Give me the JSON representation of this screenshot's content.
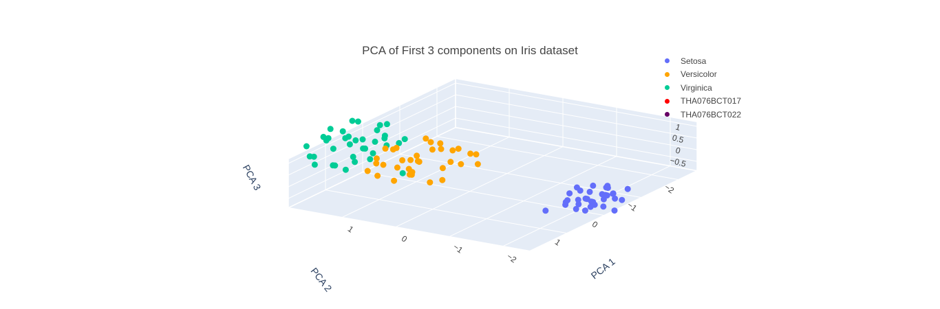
{
  "chart_data": {
    "type": "scatter3d",
    "title": "PCA of First 3 components on Iris dataset",
    "axes": {
      "x": {
        "label": "PCA 1",
        "range": [
          -2.5,
          2
        ],
        "ticks": [
          -2,
          -1,
          0,
          1
        ]
      },
      "y": {
        "label": "PCA 2",
        "range": [
          -2.5,
          2
        ],
        "ticks": [
          -2,
          -1,
          0,
          1
        ]
      },
      "z": {
        "label": "PCA 3",
        "range": [
          -0.9,
          1.2
        ],
        "tick_labels": [
          "1",
          "0.5",
          "0",
          "−0.5"
        ]
      }
    },
    "background": "#e5ecf6",
    "grid": true,
    "legend_position": "top-right",
    "series": [
      {
        "name": "Setosa",
        "color": "#636efa",
        "points": [
          [
            -2.7,
            0.3,
            0.1
          ],
          [
            -2.5,
            0.5,
            0.2
          ],
          [
            -2.9,
            0.1,
            0.0
          ],
          [
            -2.6,
            0.4,
            -0.1
          ],
          [
            -2.8,
            0.2,
            0.3
          ],
          [
            -2.3,
            0.7,
            0.2
          ],
          [
            -2.4,
            0.2,
            -0.2
          ],
          [
            -2.9,
            0.6,
            0.1
          ],
          [
            -2.5,
            -0.1,
            0.2
          ],
          [
            -2.7,
            0.8,
            0.0
          ],
          [
            -2.2,
            0.3,
            0.4
          ],
          [
            -2.6,
            0.9,
            0.1
          ],
          [
            -2.8,
            -0.2,
            0.2
          ],
          [
            -2.4,
            0.5,
            0.5
          ],
          [
            -2.9,
            0.3,
            -0.3
          ],
          [
            -2.3,
            0.1,
            0.1
          ],
          [
            -2.6,
            0.6,
            0.3
          ],
          [
            -2.7,
            0.0,
            -0.1
          ],
          [
            -2.5,
            0.3,
            0.6
          ],
          [
            -2.2,
            0.6,
            0.0
          ],
          [
            -2.8,
            0.4,
            0.4
          ],
          [
            -2.4,
            0.9,
            0.2
          ],
          [
            -2.6,
            -0.1,
            0.0
          ],
          [
            -2.9,
            0.5,
            0.5
          ],
          [
            -2.3,
            0.4,
            -0.2
          ],
          [
            -2.5,
            0.7,
            0.3
          ],
          [
            -2.7,
            0.2,
            0.6
          ],
          [
            -2.4,
            -0.2,
            0.1
          ],
          [
            -2.8,
            0.8,
            0.2
          ],
          [
            -2.6,
            0.2,
            0.2
          ],
          [
            -2.2,
            0.5,
            0.3
          ],
          [
            -2.5,
            0.3,
            -0.1
          ],
          [
            -2.1,
            1.0,
            -0.1
          ]
        ]
      },
      {
        "name": "Versicolor",
        "color": "#ffa500",
        "points": [
          [
            1.2,
            0.6,
            0.2
          ],
          [
            0.9,
            0.3,
            0.3
          ],
          [
            1.4,
            0.5,
            0.1
          ],
          [
            0.5,
            -0.2,
            0.0
          ],
          [
            1.0,
            0.2,
            -0.2
          ],
          [
            0.6,
            -0.4,
            0.3
          ],
          [
            1.3,
            0.1,
            0.5
          ],
          [
            0.3,
            -0.6,
            0.1
          ],
          [
            0.8,
            0.4,
            -0.1
          ],
          [
            0.2,
            -0.3,
            0.4
          ],
          [
            1.1,
            0.9,
            0.0
          ],
          [
            0.7,
            0.0,
            0.6
          ],
          [
            0.4,
            0.5,
            -0.3
          ],
          [
            1.5,
            -0.1,
            0.2
          ],
          [
            0.9,
            -0.5,
            0.4
          ],
          [
            0.6,
            0.7,
            0.1
          ],
          [
            1.2,
            -0.3,
            -0.1
          ],
          [
            0.1,
            0.1,
            0.3
          ],
          [
            0.8,
            -0.1,
            0.8
          ],
          [
            1.0,
            0.6,
            -0.4
          ],
          [
            0.3,
            0.3,
            0.2
          ],
          [
            1.6,
            0.2,
            0.0
          ],
          [
            0.7,
            -0.7,
            0.1
          ],
          [
            0.5,
            0.9,
            0.3
          ],
          [
            1.3,
            0.4,
            0.7
          ],
          [
            0.2,
            -0.5,
            -0.2
          ],
          [
            0.9,
            0.1,
            0.1
          ],
          [
            1.1,
            -0.4,
            0.6
          ],
          [
            0.4,
            0.2,
            0.9
          ],
          [
            0.6,
            0.5,
            0.5
          ],
          [
            1.4,
            -0.2,
            -0.3
          ],
          [
            0.1,
            0.6,
            0.0
          ],
          [
            1.7,
            0.3,
            -0.5
          ],
          [
            0.8,
            0.8,
            0.4
          ]
        ]
      },
      {
        "name": "Virginica",
        "color": "#00cc96",
        "points": [
          [
            2.5,
            0.2,
            0.5
          ],
          [
            2.2,
            -0.1,
            0.3
          ],
          [
            1.9,
            0.4,
            0.1
          ],
          [
            2.6,
            -0.4,
            0.0
          ],
          [
            2.1,
            0.6,
            -0.2
          ],
          [
            1.8,
            -0.3,
            0.4
          ],
          [
            2.3,
            0.1,
            0.8
          ],
          [
            2.0,
            -0.6,
            0.2
          ],
          [
            2.7,
            0.3,
            -0.3
          ],
          [
            1.7,
            0.1,
            0.6
          ],
          [
            2.4,
            -0.2,
            0.3
          ],
          [
            2.2,
            0.5,
            0.4
          ],
          [
            1.9,
            -0.5,
            -0.1
          ],
          [
            2.5,
            0.7,
            0.1
          ],
          [
            2.1,
            -0.8,
            0.5
          ],
          [
            1.6,
            0.3,
            0.3
          ],
          [
            2.3,
            -0.5,
            -0.4
          ],
          [
            2.0,
            0.8,
            0.0
          ],
          [
            2.6,
            0.0,
            0.7
          ],
          [
            1.8,
            -0.1,
            0.9
          ],
          [
            2.2,
            -0.3,
            -0.2
          ],
          [
            2.4,
            0.4,
            0.6
          ],
          [
            1.7,
            -0.7,
            0.1
          ],
          [
            2.8,
            -0.1,
            0.2
          ],
          [
            2.1,
            0.2,
            0.4
          ],
          [
            1.9,
            0.6,
            -0.3
          ],
          [
            2.3,
            -0.9,
            0.3
          ],
          [
            2.0,
            0.0,
            0.5
          ],
          [
            2.5,
            -0.6,
            0.6
          ],
          [
            1.6,
            -0.4,
            0.2
          ],
          [
            2.2,
            1.0,
            0.1
          ],
          [
            2.7,
            0.5,
            0.3
          ],
          [
            1.8,
            0.5,
            0.0
          ],
          [
            2.4,
            -0.3,
            0.9
          ],
          [
            0.7,
            0.8,
            0.2
          ],
          [
            2.0,
            -0.2,
            -0.5
          ]
        ]
      },
      {
        "name": "THA076BCT017",
        "color": "#ff0000",
        "points": []
      },
      {
        "name": "THA076BCT022",
        "color": "#660066",
        "points": []
      }
    ]
  }
}
